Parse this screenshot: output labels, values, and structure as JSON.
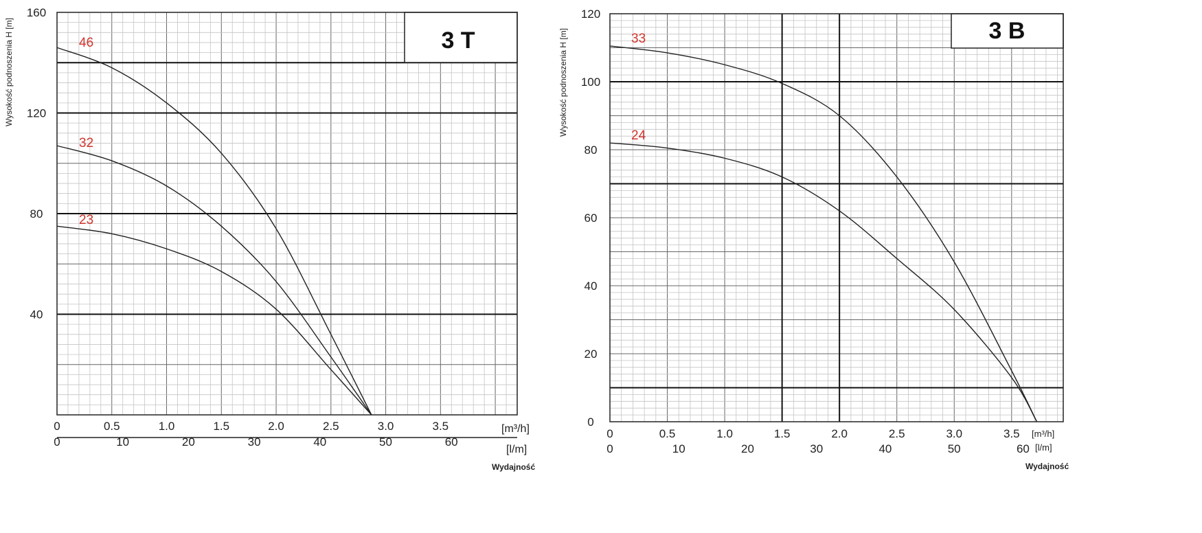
{
  "chart_data": [
    {
      "type": "line",
      "title": "3 T",
      "ylabel": "Wysokość podnoszenia H [m]",
      "xlabel": "Wydajność",
      "x_unit_primary": "[m³/h]",
      "x_unit_secondary": "[l/m]",
      "xlim": [
        0,
        4.2
      ],
      "ylim": [
        0,
        160
      ],
      "x_ticks": [
        "0",
        "0.5",
        "1.0",
        "1.5",
        "2.0",
        "2.5",
        "3.0",
        "3.5"
      ],
      "x_ticks_secondary": [
        "0",
        "10",
        "20",
        "30",
        "40",
        "50",
        "60"
      ],
      "y_ticks": [
        "40",
        "80",
        "120",
        "160"
      ],
      "grid": true,
      "series": [
        {
          "name": "46",
          "x": [
            0,
            0.5,
            1.0,
            1.5,
            2.0,
            2.5,
            2.87
          ],
          "y": [
            146,
            138,
            124,
            104,
            74,
            32,
            0
          ]
        },
        {
          "name": "32",
          "x": [
            0,
            0.5,
            1.0,
            1.5,
            2.0,
            2.5,
            2.87
          ],
          "y": [
            107,
            101,
            91,
            75,
            53,
            23,
            0
          ]
        },
        {
          "name": "23",
          "x": [
            0,
            0.5,
            1.0,
            1.5,
            2.0,
            2.5,
            2.87
          ],
          "y": [
            75,
            72,
            66,
            57,
            42,
            18,
            0
          ]
        }
      ]
    },
    {
      "type": "line",
      "title": "3 B",
      "ylabel": "Wysokość podnoszenia H [m]",
      "xlabel": "Wydajność",
      "x_unit_primary": "[m³/h]",
      "x_unit_secondary": "[l/m]",
      "xlim": [
        0,
        3.95
      ],
      "ylim": [
        0,
        120
      ],
      "x_ticks": [
        "0",
        "0.5",
        "1.0",
        "1.5",
        "2.0",
        "2.5",
        "3.0",
        "3.5"
      ],
      "x_ticks_secondary": [
        "0",
        "10",
        "20",
        "30",
        "40",
        "50",
        "60"
      ],
      "y_ticks": [
        "0",
        "20",
        "40",
        "60",
        "80",
        "100",
        "120"
      ],
      "grid": true,
      "series": [
        {
          "name": "33",
          "x": [
            0,
            0.5,
            1.0,
            1.5,
            2.0,
            2.5,
            3.0,
            3.5,
            3.72
          ],
          "y": [
            110.5,
            108.5,
            105,
            99.5,
            90,
            72,
            47,
            15,
            0
          ]
        },
        {
          "name": "24",
          "x": [
            0,
            0.5,
            1.0,
            1.5,
            2.0,
            2.5,
            3.0,
            3.5,
            3.72
          ],
          "y": [
            82,
            80.5,
            77.5,
            72,
            62,
            48,
            33,
            13,
            0
          ]
        }
      ]
    }
  ]
}
